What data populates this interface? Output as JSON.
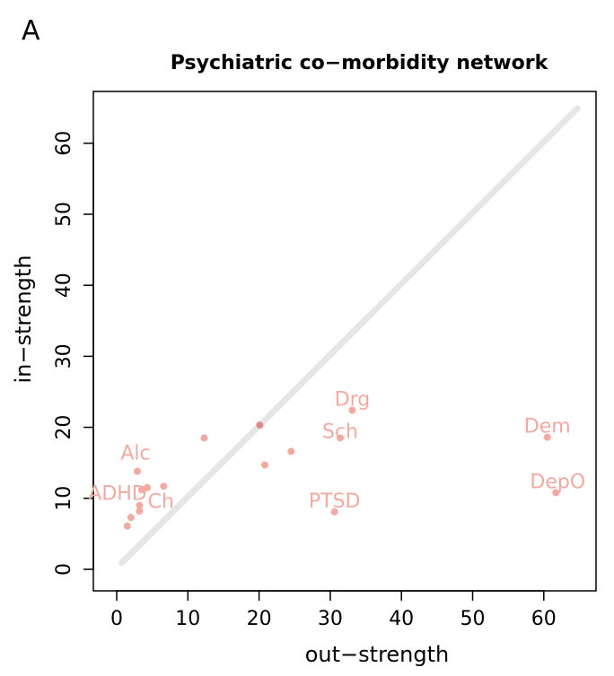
{
  "panel_letter": "A",
  "chart_data": {
    "type": "scatter",
    "title": "Psychiatric co−morbidity network",
    "xlabel": "out−strength",
    "ylabel": "in−strength",
    "xlim": [
      0,
      65
    ],
    "ylim": [
      0,
      65
    ],
    "xticks": [
      0,
      10,
      20,
      30,
      40,
      50,
      60
    ],
    "yticks": [
      0,
      10,
      20,
      30,
      40,
      50,
      60
    ],
    "grid": false,
    "reference_line": {
      "from": [
        0.7,
        0.9
      ],
      "to": [
        64.7,
        64.9
      ],
      "color": "#e6e6e6"
    },
    "point_color": "#f2aaa0",
    "dark_point_color": "#e08c86",
    "points": [
      {
        "x": 2.9,
        "y": 13.8,
        "label": "Alc"
      },
      {
        "x": 3.5,
        "y": 11.2,
        "label": "ADHD"
      },
      {
        "x": 6.6,
        "y": 11.7,
        "label": "Ch"
      },
      {
        "x": 4.3,
        "y": 11.5,
        "label": ""
      },
      {
        "x": 3.2,
        "y": 9.0,
        "label": ""
      },
      {
        "x": 3.2,
        "y": 8.2,
        "label": ""
      },
      {
        "x": 2.0,
        "y": 7.3,
        "label": ""
      },
      {
        "x": 1.5,
        "y": 6.1,
        "label": ""
      },
      {
        "x": 12.3,
        "y": 18.5,
        "label": ""
      },
      {
        "x": 20.1,
        "y": 20.3,
        "label": "",
        "dark": true
      },
      {
        "x": 20.8,
        "y": 14.7,
        "label": ""
      },
      {
        "x": 24.5,
        "y": 16.6,
        "label": ""
      },
      {
        "x": 33.1,
        "y": 22.4,
        "label": "Drg"
      },
      {
        "x": 31.4,
        "y": 18.5,
        "label": "Sch"
      },
      {
        "x": 30.6,
        "y": 8.1,
        "label": "PTSD"
      },
      {
        "x": 60.5,
        "y": 18.6,
        "label": "Dem"
      },
      {
        "x": 61.7,
        "y": 10.8,
        "label": "DepO"
      }
    ]
  }
}
